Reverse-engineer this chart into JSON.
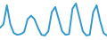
{
  "y": [
    30,
    40,
    95,
    40,
    15,
    10,
    12,
    18,
    55,
    65,
    55,
    30,
    10,
    8,
    20,
    75,
    90,
    55,
    20,
    10,
    12,
    85,
    100,
    60,
    20,
    8,
    10,
    75,
    95,
    50,
    15,
    8
  ],
  "line_color": "#3399cc",
  "line_width": 1.4,
  "bg_color": "#ffffff",
  "ylim": [
    -5,
    110
  ]
}
